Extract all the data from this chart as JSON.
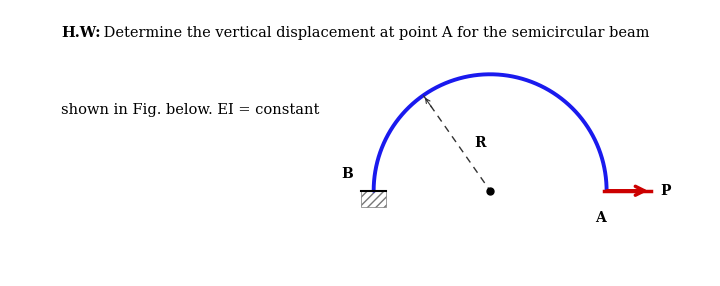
{
  "title_bold": "H.W:",
  "title_rest": " Determine the vertical displacement at point A for the semicircular beam",
  "subtitle": "shown in Fig. below. EI = constant",
  "bg_color": "#ffffff",
  "arc_color": "#1a1aee",
  "arc_linewidth": 2.8,
  "arrow_color": "#cc0000",
  "hatch_color": "#555555",
  "dashed_color": "#333333",
  "dot_color": "#000000",
  "label_B": "B",
  "label_A": "A",
  "label_P": "P",
  "label_R": "R",
  "text_fontsize": 10.5,
  "label_fontsize": 10,
  "fig_width": 7.2,
  "fig_height": 2.86,
  "dpi": 100
}
